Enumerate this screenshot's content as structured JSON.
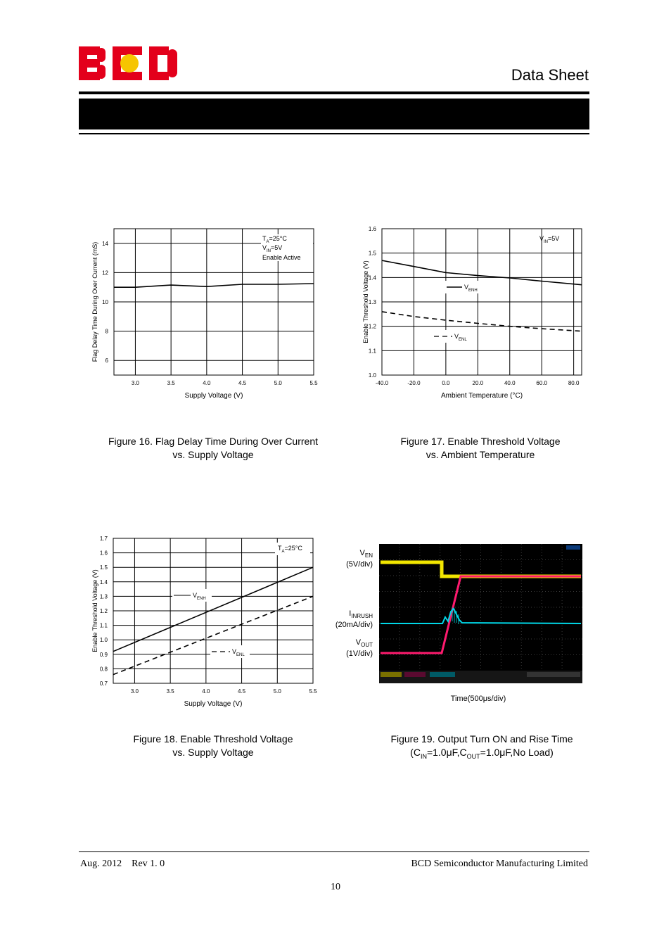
{
  "header": {
    "logo_text": "BCD",
    "doc_type": "Data Sheet"
  },
  "chart_data": [
    {
      "id": "fig16",
      "type": "line",
      "caption_line1": "Figure 16. Flag Delay Time During Over Current",
      "caption_line2": "vs. Supply Voltage",
      "xlabel": "Supply Voltage (V)",
      "ylabel": "Flag Delay Time During Over Current (mS)",
      "xlim": [
        2.7,
        5.5
      ],
      "ylim": [
        5,
        15
      ],
      "xticks": [
        "3.0",
        "3.5",
        "4.0",
        "4.5",
        "5.0",
        "5.5"
      ],
      "yticks": [
        "6",
        "8",
        "10",
        "12",
        "14"
      ],
      "grid": true,
      "annotations": [
        "TA=25°C",
        "VIN=5V",
        "Enable Active"
      ],
      "series": [
        {
          "style": "solid",
          "x": [
            2.7,
            3.0,
            3.5,
            4.0,
            4.5,
            5.0,
            5.5
          ],
          "y": [
            11.0,
            11.0,
            11.15,
            11.05,
            11.2,
            11.2,
            11.25
          ]
        }
      ]
    },
    {
      "id": "fig17",
      "type": "line",
      "caption_line1": "Figure 17. Enable Threshold Voltage",
      "caption_line2": "vs. Ambient Temperature",
      "xlabel": "Ambient Temperature (°C)",
      "ylabel": "Enable Threshold Voltage (V)",
      "xlim": [
        -40,
        85
      ],
      "ylim": [
        1.0,
        1.6
      ],
      "xticks": [
        "-40.0",
        "-20.0",
        "0.0",
        "20.0",
        "40.0",
        "60.0",
        "80.0"
      ],
      "yticks": [
        "1.0",
        "1.1",
        "1.2",
        "1.3",
        "1.4",
        "1.5",
        "1.6"
      ],
      "grid": true,
      "annotations": [
        "VIN=5V"
      ],
      "legend": [
        "VENH",
        "VENL"
      ],
      "series": [
        {
          "name": "VENH",
          "style": "solid",
          "x": [
            -40,
            -20,
            0,
            20,
            40,
            60,
            85
          ],
          "y": [
            1.47,
            1.445,
            1.42,
            1.408,
            1.398,
            1.385,
            1.37
          ]
        },
        {
          "name": "VENL",
          "style": "dashed",
          "x": [
            -40,
            -20,
            0,
            20,
            40,
            60,
            85
          ],
          "y": [
            1.26,
            1.24,
            1.225,
            1.212,
            1.2,
            1.19,
            1.18
          ]
        }
      ]
    },
    {
      "id": "fig18",
      "type": "line",
      "caption_line1": "Figure 18. Enable Threshold Voltage",
      "caption_line2": "vs. Supply Voltage",
      "xlabel": "Supply Voltage (V)",
      "ylabel": "Enable Threshold Voltage (V)",
      "xlim": [
        2.7,
        5.5
      ],
      "ylim": [
        0.7,
        1.7
      ],
      "xticks": [
        "3.0",
        "3.5",
        "4.0",
        "4.5",
        "5.0",
        "5.5"
      ],
      "yticks": [
        "0.7",
        "0.8",
        "0.9",
        "1.0",
        "1.1",
        "1.2",
        "1.3",
        "1.4",
        "1.5",
        "1.6",
        "1.7"
      ],
      "grid": true,
      "annotations": [
        "TA=25°C"
      ],
      "legend": [
        "VENH",
        "VENL"
      ],
      "series": [
        {
          "name": "VENH",
          "style": "solid",
          "x": [
            2.7,
            5.5
          ],
          "y": [
            0.92,
            1.5
          ]
        },
        {
          "name": "VENL",
          "style": "dashed",
          "x": [
            2.7,
            5.5
          ],
          "y": [
            0.76,
            1.3
          ]
        }
      ]
    }
  ],
  "scope": {
    "caption_line1": "Figure 19. Output Turn ON and Rise Time",
    "caption_line2_pre": "(C",
    "caption_sub1": "IN",
    "caption_mid": "=1.0μF,C",
    "caption_sub2": "OUT",
    "caption_post": "=1.0μF,No Load)",
    "time_label": "Time(500μs/div)",
    "ven_label": "V",
    "ven_sub": "EN",
    "ven_scale": "(5V/div)",
    "iinrush_label": "I",
    "iinrush_sub": "INRUSH",
    "iinrush_scale": "(20mA/div)",
    "vout_label": "V",
    "vout_sub": "OUT",
    "vout_scale": "(1V/div)",
    "colors": {
      "ven": "#f2e600",
      "vout": "#ff1a6e",
      "iinrush": "#00d8e8",
      "background": "#000000"
    }
  },
  "footer": {
    "left": "Aug. 2012    Rev 1. 0",
    "right": "BCD Semiconductor Manufacturing Limited",
    "page": "10"
  }
}
